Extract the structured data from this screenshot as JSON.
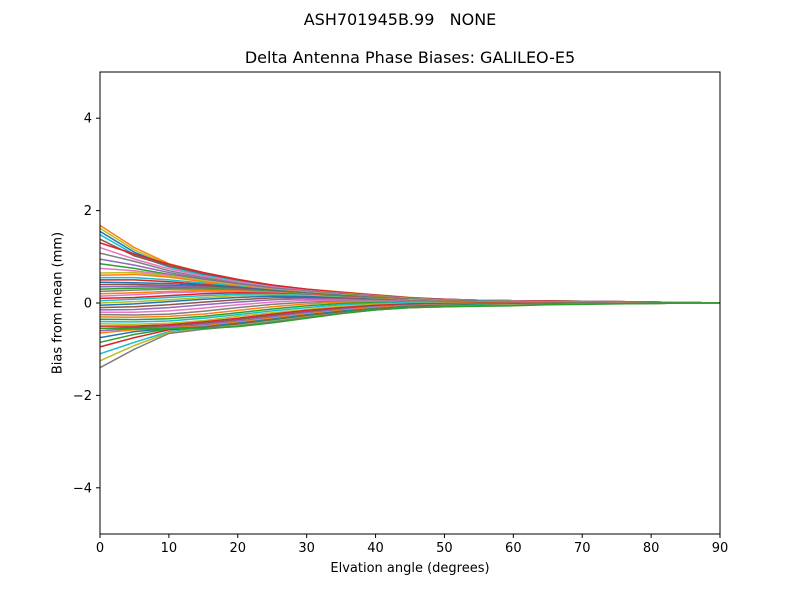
{
  "figure": {
    "suptitle": "ASH701945B.99   NONE"
  },
  "chart_data": {
    "type": "line",
    "title": "Delta Antenna Phase Biases: GALILEO-E5",
    "xlabel": "Elvation angle (degrees)",
    "ylabel": "Bias from mean (mm)",
    "xlim": [
      0,
      90
    ],
    "ylim": [
      -5,
      5
    ],
    "xticks": [
      0,
      10,
      20,
      30,
      40,
      50,
      60,
      70,
      80,
      90
    ],
    "yticks": [
      -4,
      -2,
      0,
      2,
      4
    ],
    "ytick_labels": [
      "−4",
      "−2",
      "0",
      "2",
      "4"
    ],
    "grid": false,
    "legend": "none",
    "x": [
      0,
      5,
      10,
      15,
      20,
      25,
      30,
      35,
      40,
      45,
      50,
      55,
      60,
      65,
      70,
      75,
      80,
      85,
      90
    ],
    "series": [
      {
        "color": "#ff7f0e",
        "values": [
          1.68,
          1.2,
          0.85,
          0.65,
          0.5,
          0.38,
          0.3,
          0.24,
          0.18,
          0.12,
          0.08,
          0.06,
          0.05,
          0.05,
          0.04,
          0.03,
          0.02,
          0.01,
          0.0
        ]
      },
      {
        "color": "#bcbd22",
        "values": [
          1.62,
          1.15,
          0.82,
          0.63,
          0.49,
          0.37,
          0.29,
          0.23,
          0.17,
          0.12,
          0.08,
          0.06,
          0.05,
          0.05,
          0.04,
          0.03,
          0.02,
          0.01,
          0.0
        ]
      },
      {
        "color": "#1f77b4",
        "values": [
          1.55,
          1.1,
          0.8,
          0.62,
          0.48,
          0.36,
          0.28,
          0.22,
          0.17,
          0.11,
          0.08,
          0.06,
          0.05,
          0.04,
          0.04,
          0.03,
          0.02,
          0.01,
          0.0
        ]
      },
      {
        "color": "#17becf",
        "values": [
          1.48,
          1.05,
          0.78,
          0.6,
          0.47,
          0.36,
          0.28,
          0.22,
          0.16,
          0.11,
          0.07,
          0.06,
          0.05,
          0.04,
          0.04,
          0.03,
          0.02,
          0.01,
          0.0
        ]
      },
      {
        "color": "#8c564b",
        "values": [
          1.38,
          1.02,
          0.8,
          0.64,
          0.5,
          0.38,
          0.29,
          0.22,
          0.16,
          0.11,
          0.07,
          0.06,
          0.05,
          0.04,
          0.04,
          0.03,
          0.02,
          0.01,
          0.0
        ]
      },
      {
        "color": "#d62728",
        "values": [
          1.3,
          1.06,
          0.84,
          0.66,
          0.51,
          0.39,
          0.3,
          0.23,
          0.17,
          0.11,
          0.08,
          0.06,
          0.05,
          0.05,
          0.04,
          0.03,
          0.02,
          0.01,
          0.0
        ]
      },
      {
        "color": "#e377c2",
        "values": [
          1.2,
          0.95,
          0.74,
          0.58,
          0.46,
          0.35,
          0.27,
          0.21,
          0.16,
          0.1,
          0.07,
          0.06,
          0.05,
          0.04,
          0.04,
          0.03,
          0.02,
          0.01,
          0.0
        ]
      },
      {
        "color": "#7f7f7f",
        "values": [
          1.08,
          0.9,
          0.7,
          0.55,
          0.43,
          0.33,
          0.26,
          0.2,
          0.15,
          0.1,
          0.07,
          0.05,
          0.04,
          0.04,
          0.03,
          0.03,
          0.02,
          0.01,
          0.0
        ]
      },
      {
        "color": "#9467bd",
        "values": [
          0.95,
          0.82,
          0.66,
          0.52,
          0.41,
          0.32,
          0.25,
          0.19,
          0.14,
          0.09,
          0.06,
          0.05,
          0.04,
          0.04,
          0.03,
          0.03,
          0.02,
          0.01,
          0.0
        ]
      },
      {
        "color": "#2ca02c",
        "values": [
          0.85,
          0.75,
          0.62,
          0.5,
          0.4,
          0.31,
          0.24,
          0.19,
          0.14,
          0.09,
          0.06,
          0.05,
          0.04,
          0.04,
          0.03,
          0.02,
          0.02,
          0.01,
          0.0
        ]
      },
      {
        "color": "#e377c2",
        "values": [
          0.75,
          0.7,
          0.6,
          0.49,
          0.39,
          0.3,
          0.24,
          0.18,
          0.13,
          0.09,
          0.06,
          0.05,
          0.04,
          0.04,
          0.03,
          0.02,
          0.02,
          0.01,
          0.0
        ]
      },
      {
        "color": "#bcbd22",
        "values": [
          0.65,
          0.66,
          0.58,
          0.48,
          0.38,
          0.29,
          0.23,
          0.18,
          0.13,
          0.09,
          0.06,
          0.05,
          0.04,
          0.03,
          0.03,
          0.02,
          0.02,
          0.01,
          0.0
        ]
      },
      {
        "color": "#ff7f0e",
        "values": [
          0.6,
          0.62,
          0.56,
          0.46,
          0.37,
          0.29,
          0.23,
          0.17,
          0.13,
          0.08,
          0.06,
          0.05,
          0.04,
          0.03,
          0.03,
          0.02,
          0.02,
          0.01,
          0.0
        ]
      },
      {
        "color": "#17becf",
        "values": [
          0.55,
          0.55,
          0.5,
          0.43,
          0.36,
          0.28,
          0.22,
          0.17,
          0.12,
          0.08,
          0.06,
          0.05,
          0.04,
          0.03,
          0.03,
          0.02,
          0.02,
          0.01,
          0.0
        ]
      },
      {
        "color": "#d62728",
        "values": [
          0.5,
          0.5,
          0.46,
          0.4,
          0.34,
          0.27,
          0.21,
          0.16,
          0.12,
          0.08,
          0.05,
          0.04,
          0.04,
          0.03,
          0.03,
          0.02,
          0.02,
          0.01,
          0.0
        ]
      },
      {
        "color": "#1f77b4",
        "values": [
          0.45,
          0.44,
          0.42,
          0.38,
          0.33,
          0.27,
          0.21,
          0.16,
          0.12,
          0.08,
          0.05,
          0.04,
          0.04,
          0.03,
          0.03,
          0.02,
          0.02,
          0.01,
          0.0
        ]
      },
      {
        "color": "#8c564b",
        "values": [
          0.4,
          0.4,
          0.38,
          0.36,
          0.32,
          0.26,
          0.21,
          0.16,
          0.11,
          0.07,
          0.05,
          0.04,
          0.04,
          0.03,
          0.03,
          0.02,
          0.02,
          0.01,
          0.0
        ]
      },
      {
        "color": "#9467bd",
        "values": [
          0.35,
          0.36,
          0.36,
          0.34,
          0.3,
          0.25,
          0.2,
          0.15,
          0.11,
          0.07,
          0.05,
          0.04,
          0.03,
          0.03,
          0.03,
          0.02,
          0.02,
          0.01,
          0.0
        ]
      },
      {
        "color": "#2ca02c",
        "values": [
          0.3,
          0.32,
          0.33,
          0.32,
          0.29,
          0.25,
          0.2,
          0.15,
          0.11,
          0.07,
          0.05,
          0.04,
          0.03,
          0.03,
          0.02,
          0.02,
          0.02,
          0.01,
          0.0
        ]
      },
      {
        "color": "#7f7f7f",
        "values": [
          0.25,
          0.28,
          0.3,
          0.3,
          0.28,
          0.24,
          0.19,
          0.15,
          0.11,
          0.07,
          0.05,
          0.04,
          0.03,
          0.03,
          0.02,
          0.02,
          0.01,
          0.01,
          0.0
        ]
      },
      {
        "color": "#ff7f0e",
        "values": [
          0.2,
          0.22,
          0.25,
          0.27,
          0.26,
          0.23,
          0.19,
          0.14,
          0.1,
          0.07,
          0.05,
          0.04,
          0.03,
          0.03,
          0.02,
          0.02,
          0.01,
          0.01,
          0.0
        ]
      },
      {
        "color": "#e377c2",
        "values": [
          0.15,
          0.18,
          0.22,
          0.24,
          0.24,
          0.22,
          0.18,
          0.14,
          0.1,
          0.06,
          0.04,
          0.04,
          0.03,
          0.03,
          0.02,
          0.02,
          0.01,
          0.01,
          0.0
        ]
      },
      {
        "color": "#d62728",
        "values": [
          0.1,
          0.12,
          0.16,
          0.2,
          0.22,
          0.21,
          0.18,
          0.14,
          0.1,
          0.06,
          0.04,
          0.04,
          0.03,
          0.03,
          0.02,
          0.02,
          0.01,
          0.01,
          0.0
        ]
      },
      {
        "color": "#17becf",
        "values": [
          0.05,
          0.08,
          0.12,
          0.16,
          0.19,
          0.19,
          0.17,
          0.13,
          0.09,
          0.06,
          0.04,
          0.03,
          0.03,
          0.02,
          0.02,
          0.02,
          0.01,
          0.01,
          0.0
        ]
      },
      {
        "color": "#bcbd22",
        "values": [
          0.0,
          0.03,
          0.07,
          0.12,
          0.16,
          0.17,
          0.16,
          0.12,
          0.09,
          0.06,
          0.04,
          0.03,
          0.03,
          0.02,
          0.02,
          0.02,
          0.01,
          0.01,
          0.0
        ]
      },
      {
        "color": "#1f77b4",
        "values": [
          -0.05,
          -0.02,
          0.03,
          0.08,
          0.12,
          0.15,
          0.14,
          0.11,
          0.08,
          0.05,
          0.04,
          0.03,
          0.03,
          0.02,
          0.02,
          0.02,
          0.01,
          0.01,
          0.0
        ]
      },
      {
        "color": "#8c564b",
        "values": [
          -0.1,
          -0.08,
          -0.04,
          0.02,
          0.07,
          0.11,
          0.12,
          0.1,
          0.07,
          0.05,
          0.03,
          0.03,
          0.02,
          0.02,
          0.02,
          0.01,
          0.01,
          0.01,
          0.0
        ]
      },
      {
        "color": "#9467bd",
        "values": [
          -0.15,
          -0.14,
          -0.1,
          -0.04,
          0.02,
          0.07,
          0.09,
          0.08,
          0.06,
          0.04,
          0.03,
          0.03,
          0.02,
          0.02,
          0.02,
          0.01,
          0.01,
          0.01,
          0.0
        ]
      },
      {
        "color": "#e377c2",
        "values": [
          -0.2,
          -0.2,
          -0.17,
          -0.11,
          -0.04,
          0.02,
          0.06,
          0.06,
          0.05,
          0.04,
          0.03,
          0.02,
          0.02,
          0.02,
          0.02,
          0.01,
          0.01,
          0.01,
          0.0
        ]
      },
      {
        "color": "#7f7f7f",
        "values": [
          -0.25,
          -0.26,
          -0.24,
          -0.18,
          -0.1,
          -0.03,
          0.02,
          0.04,
          0.04,
          0.03,
          0.03,
          0.02,
          0.02,
          0.02,
          0.01,
          0.01,
          0.01,
          0.0,
          0.0
        ]
      },
      {
        "color": "#ff7f0e",
        "values": [
          -0.3,
          -0.31,
          -0.29,
          -0.24,
          -0.16,
          -0.08,
          -0.02,
          0.02,
          0.03,
          0.03,
          0.02,
          0.02,
          0.02,
          0.02,
          0.01,
          0.01,
          0.01,
          0.0,
          0.0
        ]
      },
      {
        "color": "#2ca02c",
        "values": [
          -0.35,
          -0.36,
          -0.34,
          -0.29,
          -0.21,
          -0.13,
          -0.06,
          -0.01,
          0.01,
          0.02,
          0.02,
          0.02,
          0.02,
          0.01,
          0.01,
          0.01,
          0.01,
          0.0,
          0.0
        ]
      },
      {
        "color": "#17becf",
        "values": [
          -0.4,
          -0.41,
          -0.39,
          -0.33,
          -0.25,
          -0.17,
          -0.1,
          -0.04,
          -0.01,
          0.01,
          0.01,
          0.01,
          0.01,
          0.01,
          0.01,
          0.01,
          0.0,
          0.0,
          0.0
        ]
      },
      {
        "color": "#bcbd22",
        "values": [
          -0.45,
          -0.46,
          -0.44,
          -0.38,
          -0.29,
          -0.21,
          -0.14,
          -0.07,
          -0.03,
          -0.01,
          0.0,
          0.01,
          0.01,
          0.01,
          0.01,
          0.0,
          0.0,
          0.0,
          0.0
        ]
      },
      {
        "color": "#d62728",
        "values": [
          -0.5,
          -0.5,
          -0.47,
          -0.41,
          -0.33,
          -0.24,
          -0.16,
          -0.1,
          -0.05,
          -0.02,
          -0.01,
          0.0,
          0.0,
          0.0,
          0.0,
          0.0,
          0.0,
          0.0,
          0.0
        ]
      },
      {
        "color": "#8c564b",
        "values": [
          -0.55,
          -0.53,
          -0.5,
          -0.44,
          -0.36,
          -0.27,
          -0.19,
          -0.12,
          -0.07,
          -0.04,
          -0.02,
          -0.01,
          -0.01,
          0.0,
          0.0,
          0.0,
          0.0,
          0.0,
          0.0
        ]
      },
      {
        "color": "#9467bd",
        "values": [
          -0.6,
          -0.56,
          -0.52,
          -0.47,
          -0.39,
          -0.3,
          -0.21,
          -0.14,
          -0.08,
          -0.05,
          -0.03,
          -0.02,
          -0.01,
          -0.01,
          0.0,
          0.0,
          0.0,
          0.0,
          0.0
        ]
      },
      {
        "color": "#ff7f0e",
        "values": [
          -0.65,
          -0.58,
          -0.54,
          -0.5,
          -0.42,
          -0.33,
          -0.24,
          -0.16,
          -0.1,
          -0.06,
          -0.04,
          -0.03,
          -0.02,
          -0.01,
          -0.01,
          0.0,
          0.0,
          0.0,
          0.0
        ]
      },
      {
        "color": "#1f77b4",
        "values": [
          -0.75,
          -0.62,
          -0.55,
          -0.52,
          -0.44,
          -0.35,
          -0.26,
          -0.18,
          -0.12,
          -0.07,
          -0.05,
          -0.03,
          -0.02,
          -0.01,
          -0.01,
          -0.01,
          0.0,
          0.0,
          0.0
        ]
      },
      {
        "color": "#2ca02c",
        "values": [
          -0.85,
          -0.68,
          -0.56,
          -0.53,
          -0.46,
          -0.37,
          -0.28,
          -0.2,
          -0.13,
          -0.08,
          -0.06,
          -0.04,
          -0.03,
          -0.02,
          -0.01,
          -0.01,
          0.0,
          0.0,
          0.0
        ]
      },
      {
        "color": "#d62728",
        "values": [
          -0.95,
          -0.75,
          -0.58,
          -0.54,
          -0.47,
          -0.38,
          -0.29,
          -0.21,
          -0.14,
          -0.09,
          -0.07,
          -0.05,
          -0.03,
          -0.02,
          -0.02,
          -0.01,
          -0.01,
          0.0,
          0.0
        ]
      },
      {
        "color": "#17becf",
        "values": [
          -1.1,
          -0.85,
          -0.62,
          -0.55,
          -0.48,
          -0.39,
          -0.3,
          -0.22,
          -0.15,
          -0.1,
          -0.07,
          -0.05,
          -0.04,
          -0.03,
          -0.02,
          -0.01,
          -0.01,
          0.0,
          0.0
        ]
      },
      {
        "color": "#bcbd22",
        "values": [
          -1.25,
          -0.92,
          -0.64,
          -0.56,
          -0.49,
          -0.4,
          -0.3,
          -0.22,
          -0.15,
          -0.1,
          -0.08,
          -0.06,
          -0.04,
          -0.03,
          -0.02,
          -0.01,
          -0.01,
          0.0,
          0.0
        ]
      },
      {
        "color": "#7f7f7f",
        "values": [
          -1.4,
          -1.0,
          -0.66,
          -0.57,
          -0.5,
          -0.41,
          -0.31,
          -0.22,
          -0.15,
          -0.1,
          -0.08,
          -0.06,
          -0.05,
          -0.03,
          -0.02,
          -0.01,
          -0.01,
          0.0,
          0.0
        ]
      },
      {
        "color": "#2ca02c",
        "values": [
          -0.55,
          -0.56,
          -0.55,
          -0.55,
          -0.51,
          -0.43,
          -0.33,
          -0.23,
          -0.15,
          -0.1,
          -0.08,
          -0.07,
          -0.06,
          -0.04,
          -0.03,
          -0.02,
          -0.01,
          0.0,
          0.0
        ]
      }
    ]
  }
}
